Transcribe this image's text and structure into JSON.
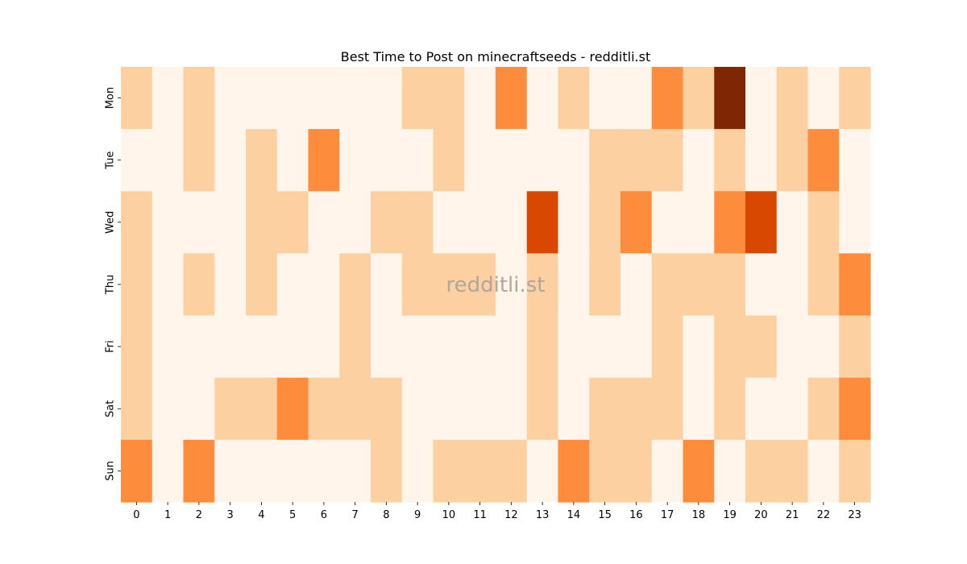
{
  "chart_data": {
    "type": "heatmap",
    "title": "Best Time to Post on minecraftseeds - redditli.st",
    "watermark": "redditli.st",
    "x": [
      "0",
      "1",
      "2",
      "3",
      "4",
      "5",
      "6",
      "7",
      "8",
      "9",
      "10",
      "11",
      "12",
      "13",
      "14",
      "15",
      "16",
      "17",
      "18",
      "19",
      "20",
      "21",
      "22",
      "23"
    ],
    "y": [
      "Mon",
      "Tue",
      "Wed",
      "Thu",
      "Fri",
      "Sat",
      "Sun"
    ],
    "values": [
      [
        1,
        0,
        1,
        0,
        0,
        0,
        0,
        0,
        0,
        1,
        1,
        0,
        2,
        0,
        1,
        0,
        0,
        2,
        1,
        4,
        0,
        1,
        0,
        1
      ],
      [
        0,
        0,
        1,
        0,
        1,
        0,
        2,
        0,
        0,
        0,
        1,
        0,
        0,
        0,
        0,
        1,
        1,
        1,
        0,
        1,
        0,
        1,
        2,
        0
      ],
      [
        1,
        0,
        0,
        0,
        1,
        1,
        0,
        0,
        1,
        1,
        0,
        0,
        0,
        3,
        0,
        1,
        2,
        0,
        0,
        2,
        3,
        0,
        1,
        0
      ],
      [
        1,
        0,
        1,
        0,
        1,
        0,
        0,
        1,
        0,
        1,
        1,
        1,
        0,
        1,
        0,
        1,
        0,
        1,
        1,
        1,
        0,
        0,
        1,
        2
      ],
      [
        1,
        0,
        0,
        0,
        0,
        0,
        0,
        1,
        0,
        0,
        0,
        0,
        0,
        1,
        0,
        0,
        0,
        1,
        0,
        1,
        1,
        0,
        0,
        1
      ],
      [
        1,
        0,
        0,
        1,
        1,
        2,
        1,
        1,
        1,
        0,
        0,
        0,
        0,
        1,
        0,
        1,
        1,
        1,
        0,
        1,
        0,
        0,
        1,
        2
      ],
      [
        2,
        0,
        2,
        0,
        0,
        0,
        0,
        0,
        1,
        0,
        1,
        1,
        1,
        0,
        2,
        1,
        1,
        0,
        2,
        0,
        1,
        1,
        0,
        1
      ]
    ],
    "colorscale": [
      "#fff5eb",
      "#fdd0a2",
      "#fd8d3c",
      "#d94801",
      "#7f2704"
    ],
    "grid": false,
    "colorbar": false
  }
}
